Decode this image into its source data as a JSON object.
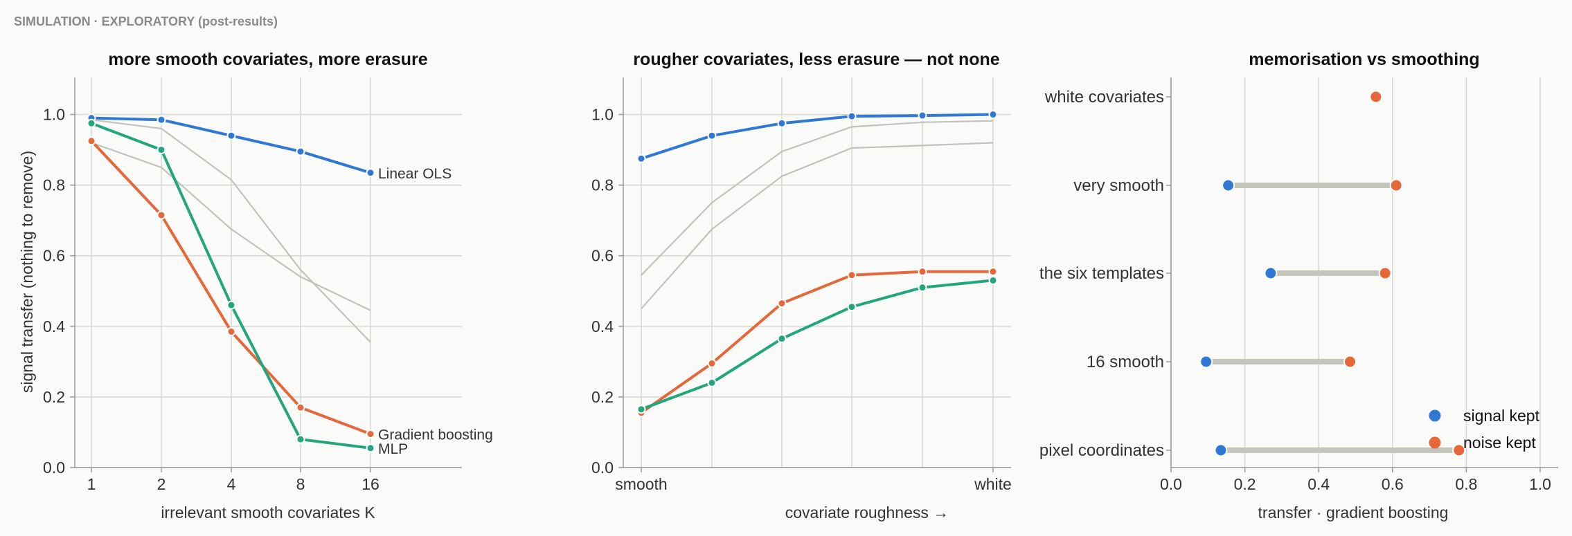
{
  "header": "SIMULATION · EXPLORATORY (post-results)",
  "colors": {
    "linear_ols": "#2f79d4",
    "gradient_boosting": "#e5673a",
    "mlp": "#22a67e",
    "reference": "#c2c2bc",
    "dumbbell_bar": "#c4c5bb"
  },
  "chart_data": [
    {
      "type": "line",
      "title": "more smooth covariates, more erasure",
      "xlabel": "irrelevant smooth covariates K",
      "ylabel": "signal transfer (nothing to remove)",
      "x": [
        "1",
        "2",
        "4",
        "8",
        "16"
      ],
      "ylim": [
        0,
        1.05
      ],
      "yticks": [
        "0.0",
        "0.2",
        "0.4",
        "0.6",
        "0.8",
        "1.0"
      ],
      "grid": true,
      "series": [
        {
          "name": "Linear OLS",
          "color": "#2f79d4",
          "values": [
            0.99,
            0.985,
            0.94,
            0.895,
            0.835
          ]
        },
        {
          "name": "Gradient boosting",
          "color": "#e5673a",
          "values": [
            0.925,
            0.715,
            0.385,
            0.17,
            0.095
          ]
        },
        {
          "name": "MLP",
          "color": "#22a67e",
          "values": [
            0.975,
            0.9,
            0.46,
            0.08,
            0.055
          ]
        },
        {
          "color": "#c2c2bc",
          "reference": true,
          "values": [
            0.985,
            0.96,
            0.815,
            0.56,
            0.355
          ]
        },
        {
          "color": "#c2c2bc",
          "reference": true,
          "values": [
            0.92,
            0.85,
            0.675,
            0.54,
            0.445
          ]
        }
      ]
    },
    {
      "type": "line",
      "title": "rougher covariates, less erasure — not none",
      "xlabel": "covariate roughness →",
      "x_tick_labels": [
        "smooth",
        "white"
      ],
      "x": [
        0,
        1,
        2,
        3,
        4,
        5
      ],
      "ylim": [
        0,
        1.05
      ],
      "yticks": [
        "0.0",
        "0.2",
        "0.4",
        "0.6",
        "0.8",
        "1.0"
      ],
      "grid": true,
      "series": [
        {
          "color": "#2f79d4",
          "values": [
            0.875,
            0.94,
            0.975,
            0.995,
            0.997,
            1.0
          ]
        },
        {
          "color": "#e5673a",
          "values": [
            0.155,
            0.295,
            0.465,
            0.545,
            0.555,
            0.555
          ]
        },
        {
          "color": "#22a67e",
          "values": [
            0.165,
            0.24,
            0.365,
            0.455,
            0.51,
            0.53
          ]
        },
        {
          "color": "#c2c2bc",
          "reference": true,
          "values": [
            0.545,
            0.75,
            0.895,
            0.965,
            0.978,
            0.982
          ]
        },
        {
          "color": "#c2c2bc",
          "reference": true,
          "values": [
            0.45,
            0.675,
            0.825,
            0.905,
            0.912,
            0.92
          ]
        }
      ]
    },
    {
      "type": "dumbbell",
      "title": "memorisation vs smoothing",
      "xlabel": "transfer · gradient boosting",
      "xlim": [
        0,
        1.0
      ],
      "xticks": [
        "0.0",
        "0.2",
        "0.4",
        "0.6",
        "0.8",
        "1.0"
      ],
      "grid": true,
      "legend": {
        "placement": "bottom-right",
        "signal": "signal kept",
        "noise": "noise kept"
      },
      "categories": [
        "white covariates",
        "very smooth",
        "the six templates",
        "16 smooth",
        "pixel coordinates"
      ],
      "signal_kept": [
        null,
        0.155,
        0.27,
        0.095,
        0.135
      ],
      "noise_kept": [
        0.555,
        0.61,
        0.58,
        0.485,
        0.78
      ]
    }
  ]
}
